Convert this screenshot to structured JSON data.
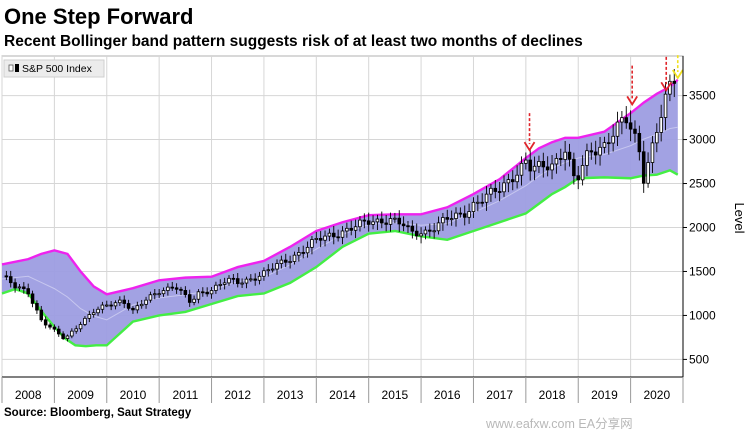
{
  "chart_data": {
    "type": "line",
    "title": "One Step Forward",
    "subtitle": "Recent Bollinger band pattern suggests risk of at least two months of declines",
    "ylabel": "Level",
    "ylim": [
      300,
      3950
    ],
    "xlim": [
      2008.0,
      2021.0
    ],
    "yticks": [
      500,
      1000,
      1500,
      2000,
      2500,
      3000,
      3500
    ],
    "x_categories": [
      "2008",
      "2009",
      "2010",
      "2011",
      "2012",
      "2013",
      "2014",
      "2015",
      "2016",
      "2017",
      "2018",
      "2019",
      "2020"
    ],
    "legend": {
      "placement": "top-left",
      "entries": [
        "S&P 500 Index"
      ]
    },
    "grid": true,
    "series": [
      {
        "name": "S&P 500 Index",
        "role": "close",
        "x": [
          2008.0,
          2008.25,
          2008.5,
          2008.75,
          2009.0,
          2009.2,
          2009.5,
          2009.75,
          2010.0,
          2010.3,
          2010.5,
          2010.75,
          2011.0,
          2011.3,
          2011.6,
          2011.75,
          2012.0,
          2012.3,
          2012.5,
          2012.75,
          2013.0,
          2013.5,
          2014.0,
          2014.5,
          2015.0,
          2015.4,
          2015.65,
          2015.8,
          2016.1,
          2016.5,
          2016.8,
          2017.0,
          2017.5,
          2018.0,
          2018.1,
          2018.5,
          2018.75,
          2018.95,
          2019.2,
          2019.5,
          2019.9,
          2020.15,
          2020.25,
          2020.5,
          2020.65,
          2020.8
        ],
        "values": [
          1450,
          1320,
          1270,
          950,
          820,
          730,
          920,
          1040,
          1110,
          1180,
          1050,
          1170,
          1280,
          1340,
          1140,
          1250,
          1300,
          1400,
          1370,
          1420,
          1480,
          1650,
          1850,
          1960,
          2060,
          2100,
          2030,
          1930,
          1960,
          2090,
          2150,
          2270,
          2430,
          2750,
          2650,
          2720,
          2900,
          2480,
          2860,
          2950,
          3230,
          2950,
          2580,
          3100,
          3400,
          3680
        ]
      },
      {
        "name": "Upper band",
        "role": "upper",
        "x": [
          2008.0,
          2008.5,
          2008.75,
          2009.0,
          2009.25,
          2009.5,
          2009.75,
          2010.0,
          2010.5,
          2011.0,
          2011.5,
          2012.0,
          2012.5,
          2013.0,
          2013.5,
          2014.0,
          2014.5,
          2015.0,
          2015.5,
          2016.0,
          2016.5,
          2017.0,
          2017.5,
          2018.0,
          2018.25,
          2018.5,
          2018.75,
          2019.0,
          2019.5,
          2020.0,
          2020.25,
          2020.5,
          2020.75,
          2020.9
        ],
        "values": [
          1580,
          1640,
          1700,
          1740,
          1700,
          1500,
          1330,
          1240,
          1310,
          1400,
          1430,
          1440,
          1550,
          1620,
          1780,
          1960,
          2060,
          2140,
          2150,
          2150,
          2230,
          2380,
          2550,
          2790,
          2900,
          2970,
          3020,
          3020,
          3090,
          3300,
          3420,
          3520,
          3600,
          3680
        ]
      },
      {
        "name": "Lower band",
        "role": "lower",
        "x": [
          2008.0,
          2008.25,
          2008.5,
          2008.75,
          2009.0,
          2009.2,
          2009.4,
          2009.6,
          2009.8,
          2010.0,
          2010.5,
          2011.0,
          2011.5,
          2012.0,
          2012.5,
          2013.0,
          2013.5,
          2014.0,
          2014.5,
          2015.0,
          2015.5,
          2016.0,
          2016.5,
          2017.0,
          2017.5,
          2018.0,
          2018.25,
          2018.5,
          2018.75,
          2019.0,
          2019.5,
          2020.0,
          2020.25,
          2020.5,
          2020.75,
          2020.9
        ],
        "values": [
          1250,
          1300,
          1250,
          1050,
          870,
          740,
          660,
          650,
          660,
          660,
          930,
          1000,
          1040,
          1130,
          1220,
          1250,
          1370,
          1550,
          1780,
          1930,
          1960,
          1900,
          1860,
          1960,
          2060,
          2160,
          2270,
          2380,
          2460,
          2560,
          2570,
          2560,
          2590,
          2600,
          2650,
          2600
        ]
      }
    ],
    "annotations": [
      {
        "type": "arrow-down",
        "color": "#e0252b",
        "x": 2018.07,
        "y_top": 3300,
        "y_tip": 2880
      },
      {
        "type": "arrow-down",
        "color": "#e0252b",
        "x": 2020.03,
        "y_top": 3840,
        "y_tip": 3400
      },
      {
        "type": "arrow-down",
        "color": "#e0252b",
        "x": 2020.68,
        "y_top": 3940,
        "y_tip": 3560
      },
      {
        "type": "arrow-down",
        "color": "#f0e020",
        "x": 2020.9,
        "y_top": 3960,
        "y_tip": 3700
      }
    ],
    "colors": {
      "band_fill": "#9d9de2",
      "upper": "#ee22ee",
      "lower": "#44ee44",
      "candle": "#000000",
      "grid": "#d6d6d6"
    }
  },
  "source": "Source: Bloomberg, Saut Strategy",
  "watermark": "www.eafxw.com  EA分享网"
}
